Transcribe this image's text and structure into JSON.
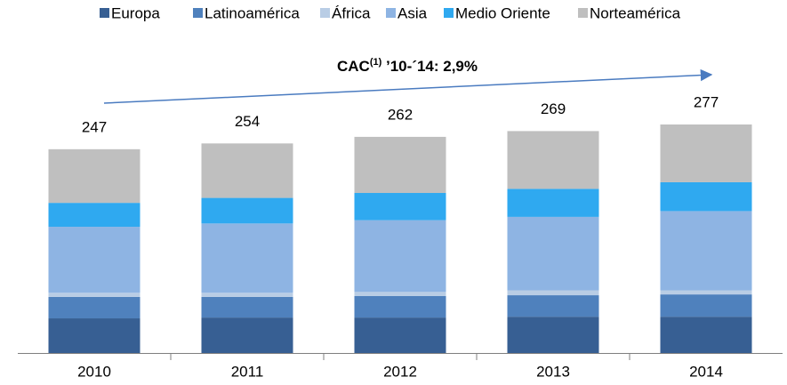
{
  "chart_data": {
    "type": "stacked_bar",
    "annotation": {
      "text": "CAC",
      "superscript": "(1)",
      "suffix": " ’10-´14: 2,9%"
    },
    "categories": [
      "2010",
      "2011",
      "2012",
      "2013",
      "2014"
    ],
    "totals": [
      247,
      254,
      262,
      269,
      277
    ],
    "series": [
      {
        "name": "Europa",
        "color": "#375f93",
        "values": [
          42,
          43,
          43,
          44,
          44
        ]
      },
      {
        "name": "Latinoamérica",
        "color": "#4f81bd",
        "values": [
          26,
          25,
          26,
          26,
          27
        ]
      },
      {
        "name": "África",
        "color": "#b9cde5",
        "values": [
          5,
          5,
          5,
          6,
          5
        ]
      },
      {
        "name": "Asia",
        "color": "#8eb4e3",
        "values": [
          80,
          84,
          87,
          89,
          96
        ]
      },
      {
        "name": "Medio Oriente",
        "color": "#2fa9f0",
        "values": [
          29,
          31,
          33,
          34,
          35
        ]
      },
      {
        "name": "Norteamérica",
        "color": "#bfbfbf",
        "values": [
          65,
          66,
          68,
          70,
          70
        ]
      }
    ],
    "legend": "top"
  }
}
